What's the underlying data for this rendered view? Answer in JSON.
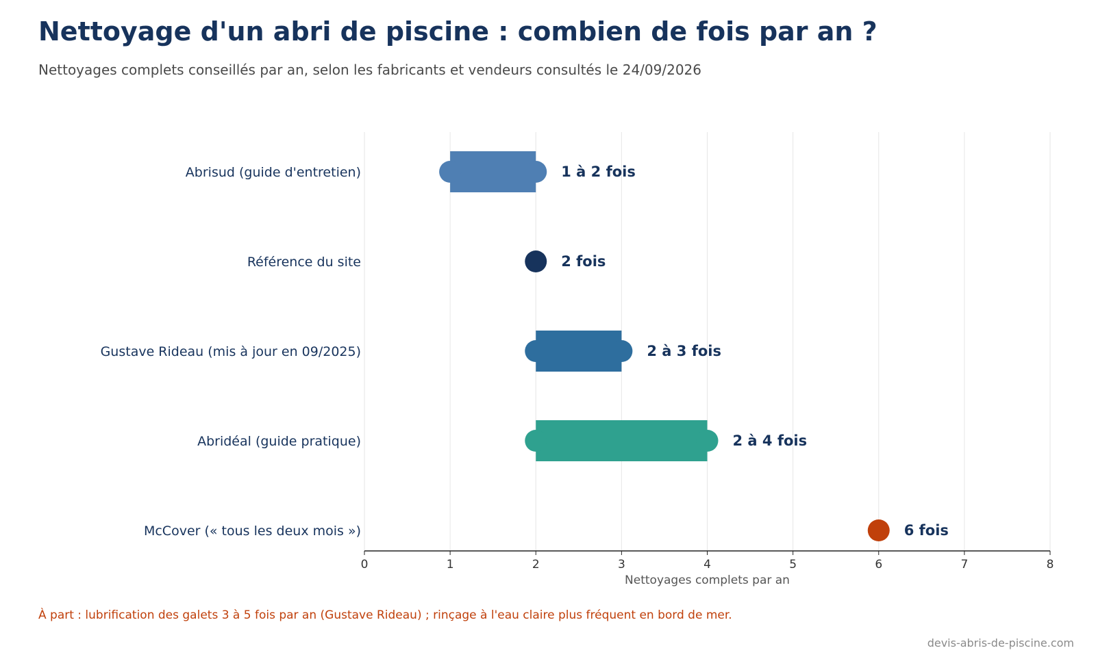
{
  "header": {
    "title": "Nettoyage d'un abri de piscine : combien de fois par an ?",
    "subtitle": "Nettoyages complets conseillés par an, selon les fabricants et vendeurs consultés le 24/09/2026"
  },
  "footer": {
    "note": "À part : lubrification des galets 3 à 5 fois par an (Gustave Rideau) ; rinçage à l'eau claire plus fréquent en bord de mer.",
    "source": "devis-abris-de-piscine.com"
  },
  "chart_data": {
    "type": "range-bar",
    "xlabel": "Nettoyages complets par an",
    "xlim": [
      0,
      8
    ],
    "xticks": [
      0,
      1,
      2,
      3,
      4,
      5,
      6,
      7,
      8
    ],
    "grid": "vertical",
    "rows": [
      {
        "label": "Abrisud (guide d'entretien)",
        "min": 1,
        "max": 2,
        "value_label": "1 à 2 fois",
        "color": "#4f7fb3"
      },
      {
        "label": "Référence du site",
        "min": 2,
        "max": 2,
        "value_label": "2 fois",
        "color": "#17335c"
      },
      {
        "label": "Gustave Rideau (mis à jour en 09/2025)",
        "min": 2,
        "max": 3,
        "value_label": "2 à 3 fois",
        "color": "#2e6e9e"
      },
      {
        "label": "Abridéal (guide pratique)",
        "min": 2,
        "max": 4,
        "value_label": "2 à 4 fois",
        "color": "#2fa18f"
      },
      {
        "label": "McCover (« tous les deux mois »)",
        "min": 6,
        "max": 6,
        "value_label": "6 fois",
        "color": "#c0400b"
      }
    ]
  },
  "colors": {
    "title": "#17335c",
    "label": "#17335c",
    "note": "#c0400b",
    "axis": "#222222",
    "grid": "#e6e6e6"
  }
}
